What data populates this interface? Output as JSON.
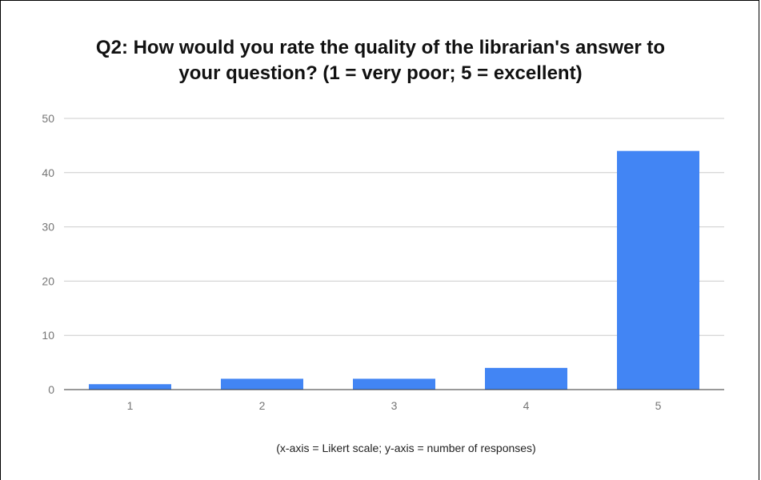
{
  "chart_data": {
    "type": "bar",
    "title_line1": "Q2: How would you rate the quality of the librarian's answer to",
    "title_line2": "your question? (1 = very poor; 5 = excellent)",
    "categories": [
      "1",
      "2",
      "3",
      "4",
      "5"
    ],
    "values": [
      1,
      2,
      2,
      4,
      44
    ],
    "ylim": [
      0,
      50
    ],
    "yticks": [
      "0",
      "10",
      "20",
      "30",
      "40",
      "50"
    ],
    "caption": "(x-axis = Likert scale; y-axis = number of responses)",
    "grid": true,
    "bar_color": "#4285f4"
  }
}
